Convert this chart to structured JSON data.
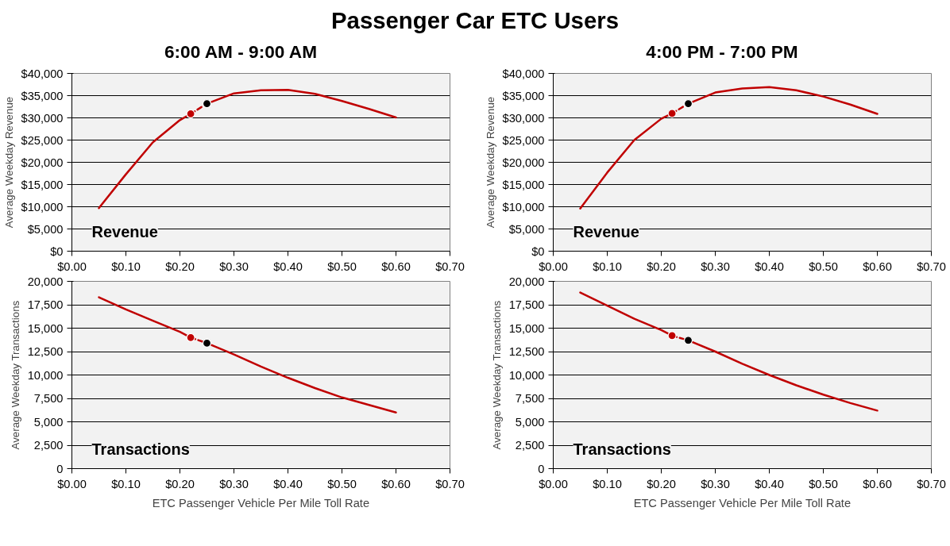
{
  "chart_data": [
    {
      "type": "line",
      "title": "Passenger Car ETC Users",
      "subtitle": "6:00 AM - 9:00 AM",
      "ylabel": "Average Weekday Revenue",
      "annotations": [
        "Revenue"
      ],
      "grid": "y",
      "xlim": [
        0,
        0.7
      ],
      "xticks": [
        {
          "value": 0,
          "label": "$0.00"
        },
        {
          "value": 0.1,
          "label": "$0.10"
        },
        {
          "value": 0.2,
          "label": "$0.20"
        },
        {
          "value": 0.3,
          "label": "$0.30"
        },
        {
          "value": 0.4,
          "label": "$0.40"
        },
        {
          "value": 0.5,
          "label": "$0.50"
        },
        {
          "value": 0.6,
          "label": "$0.60"
        },
        {
          "value": 0.7,
          "label": "$0.70"
        }
      ],
      "ylim": [
        0,
        40000
      ],
      "yticks": [
        {
          "value": 0,
          "label": "$0"
        },
        {
          "value": 5000,
          "label": "$5,000"
        },
        {
          "value": 10000,
          "label": "$10,000"
        },
        {
          "value": 15000,
          "label": "$15,000"
        },
        {
          "value": 20000,
          "label": "$20,000"
        },
        {
          "value": 25000,
          "label": "$25,000"
        },
        {
          "value": 30000,
          "label": "$30,000"
        },
        {
          "value": 35000,
          "label": "$35,000"
        },
        {
          "value": 40000,
          "label": "$40,000"
        }
      ],
      "series": [
        {
          "color": "#c00000",
          "line_style": "solid",
          "x": [
            0.05,
            0.1,
            0.15,
            0.2,
            0.22
          ],
          "values": [
            9700,
            17300,
            24500,
            29500,
            30900
          ]
        },
        {
          "color": "#c00000",
          "line_style": "dashed",
          "x": [
            0.22,
            0.25
          ],
          "values": [
            30900,
            33200
          ]
        },
        {
          "color": "#c00000",
          "line_style": "solid",
          "x": [
            0.25,
            0.3,
            0.35,
            0.4,
            0.45,
            0.5,
            0.55,
            0.6
          ],
          "values": [
            33200,
            35500,
            36200,
            36300,
            35400,
            33800,
            32000,
            30100
          ]
        },
        {
          "type": "scatter",
          "color": "#c00000",
          "marker": "circle",
          "x": [
            0.22
          ],
          "values": [
            30900
          ]
        },
        {
          "type": "scatter",
          "color": "#000000",
          "marker": "circle",
          "x": [
            0.25
          ],
          "values": [
            33200
          ]
        }
      ]
    },
    {
      "type": "line",
      "subtitle": "4:00 PM - 7:00 PM",
      "ylabel": "Average Weekday Revenue",
      "annotations": [
        "Revenue"
      ],
      "grid": "y",
      "xlim": [
        0,
        0.7
      ],
      "xticks": [
        {
          "value": 0,
          "label": "$0.00"
        },
        {
          "value": 0.1,
          "label": "$0.10"
        },
        {
          "value": 0.2,
          "label": "$0.20"
        },
        {
          "value": 0.3,
          "label": "$0.30"
        },
        {
          "value": 0.4,
          "label": "$0.40"
        },
        {
          "value": 0.5,
          "label": "$0.50"
        },
        {
          "value": 0.6,
          "label": "$0.60"
        },
        {
          "value": 0.7,
          "label": "$0.70"
        }
      ],
      "ylim": [
        0,
        40000
      ],
      "yticks": [
        {
          "value": 0,
          "label": "$0"
        },
        {
          "value": 5000,
          "label": "$5,000"
        },
        {
          "value": 10000,
          "label": "$10,000"
        },
        {
          "value": 15000,
          "label": "$15,000"
        },
        {
          "value": 20000,
          "label": "$20,000"
        },
        {
          "value": 25000,
          "label": "$25,000"
        },
        {
          "value": 30000,
          "label": "$30,000"
        },
        {
          "value": 35000,
          "label": "$35,000"
        },
        {
          "value": 40000,
          "label": "$40,000"
        }
      ],
      "series": [
        {
          "color": "#c00000",
          "line_style": "solid",
          "x": [
            0.05,
            0.1,
            0.15,
            0.2,
            0.22
          ],
          "values": [
            9600,
            17700,
            25000,
            29800,
            31000
          ]
        },
        {
          "color": "#c00000",
          "line_style": "dashed",
          "x": [
            0.22,
            0.25
          ],
          "values": [
            31000,
            33200
          ]
        },
        {
          "color": "#c00000",
          "line_style": "solid",
          "x": [
            0.25,
            0.3,
            0.35,
            0.4,
            0.45,
            0.5,
            0.55,
            0.6
          ],
          "values": [
            33200,
            35700,
            36600,
            36900,
            36200,
            34800,
            33000,
            30900
          ]
        },
        {
          "type": "scatter",
          "color": "#c00000",
          "marker": "circle",
          "x": [
            0.22
          ],
          "values": [
            31000
          ]
        },
        {
          "type": "scatter",
          "color": "#000000",
          "marker": "circle",
          "x": [
            0.25
          ],
          "values": [
            33200
          ]
        }
      ]
    },
    {
      "type": "line",
      "xlabel": "ETC Passenger Vehicle Per Mile Toll Rate",
      "ylabel": "Average Weekday Transactions",
      "annotations": [
        "Transactions"
      ],
      "grid": "y",
      "xlim": [
        0,
        0.7
      ],
      "xticks": [
        {
          "value": 0,
          "label": "$0.00"
        },
        {
          "value": 0.1,
          "label": "$0.10"
        },
        {
          "value": 0.2,
          "label": "$0.20"
        },
        {
          "value": 0.3,
          "label": "$0.30"
        },
        {
          "value": 0.4,
          "label": "$0.40"
        },
        {
          "value": 0.5,
          "label": "$0.50"
        },
        {
          "value": 0.6,
          "label": "$0.60"
        },
        {
          "value": 0.7,
          "label": "$0.70"
        }
      ],
      "ylim": [
        0,
        20000
      ],
      "yticks": [
        0,
        {
          "value": 2500,
          "label": "2,500"
        },
        {
          "value": 5000,
          "label": "5,000"
        },
        {
          "value": 7500,
          "label": "7,500"
        },
        {
          "value": 10000,
          "label": "10,000"
        },
        {
          "value": 12500,
          "label": "12,500"
        },
        {
          "value": 15000,
          "label": "15,000"
        },
        {
          "value": 17500,
          "label": "17,500"
        },
        {
          "value": 20000,
          "label": "20,000"
        }
      ],
      "series": [
        {
          "color": "#c00000",
          "line_style": "solid",
          "x": [
            0.05,
            0.1,
            0.15,
            0.2,
            0.22
          ],
          "values": [
            18300,
            17000,
            15800,
            14600,
            14000
          ]
        },
        {
          "color": "#c00000",
          "line_style": "dashed",
          "x": [
            0.22,
            0.25
          ],
          "values": [
            14000,
            13400
          ]
        },
        {
          "color": "#c00000",
          "line_style": "solid",
          "x": [
            0.25,
            0.3,
            0.35,
            0.4,
            0.45,
            0.5,
            0.55,
            0.6
          ],
          "values": [
            13400,
            12200,
            10900,
            9700,
            8600,
            7600,
            6800,
            6000
          ]
        },
        {
          "type": "scatter",
          "color": "#c00000",
          "marker": "circle",
          "x": [
            0.22
          ],
          "values": [
            14000
          ]
        },
        {
          "type": "scatter",
          "color": "#000000",
          "marker": "circle",
          "x": [
            0.25
          ],
          "values": [
            13400
          ]
        }
      ]
    },
    {
      "type": "line",
      "xlabel": "ETC Passenger Vehicle Per Mile Toll Rate",
      "ylabel": "Average Weekday Transactions",
      "annotations": [
        "Transactions"
      ],
      "grid": "y",
      "xlim": [
        0,
        0.7
      ],
      "xticks": [
        {
          "value": 0,
          "label": "$0.00"
        },
        {
          "value": 0.1,
          "label": "$0.10"
        },
        {
          "value": 0.2,
          "label": "$0.20"
        },
        {
          "value": 0.3,
          "label": "$0.30"
        },
        {
          "value": 0.4,
          "label": "$0.40"
        },
        {
          "value": 0.5,
          "label": "$0.50"
        },
        {
          "value": 0.6,
          "label": "$0.60"
        },
        {
          "value": 0.7,
          "label": "$0.70"
        }
      ],
      "ylim": [
        0,
        20000
      ],
      "yticks": [
        0,
        {
          "value": 2500,
          "label": "2,500"
        },
        {
          "value": 5000,
          "label": "5,000"
        },
        {
          "value": 7500,
          "label": "7,500"
        },
        {
          "value": 10000,
          "label": "10,000"
        },
        {
          "value": 12500,
          "label": "12,500"
        },
        {
          "value": 15000,
          "label": "15,000"
        },
        {
          "value": 17500,
          "label": "17,500"
        },
        {
          "value": 20000,
          "label": "20,000"
        }
      ],
      "series": [
        {
          "color": "#c00000",
          "line_style": "solid",
          "x": [
            0.05,
            0.1,
            0.15,
            0.2,
            0.22
          ],
          "values": [
            18800,
            17400,
            16000,
            14800,
            14200
          ]
        },
        {
          "color": "#c00000",
          "line_style": "dashed",
          "x": [
            0.22,
            0.25
          ],
          "values": [
            14200,
            13700
          ]
        },
        {
          "color": "#c00000",
          "line_style": "solid",
          "x": [
            0.25,
            0.3,
            0.35,
            0.4,
            0.45,
            0.5,
            0.55,
            0.6
          ],
          "values": [
            13700,
            12500,
            11200,
            10000,
            8900,
            7900,
            7000,
            6200
          ]
        },
        {
          "type": "scatter",
          "color": "#c00000",
          "marker": "circle",
          "x": [
            0.22
          ],
          "values": [
            14200
          ]
        },
        {
          "type": "scatter",
          "color": "#000000",
          "marker": "circle",
          "x": [
            0.25
          ],
          "values": [
            13700
          ]
        }
      ]
    }
  ]
}
